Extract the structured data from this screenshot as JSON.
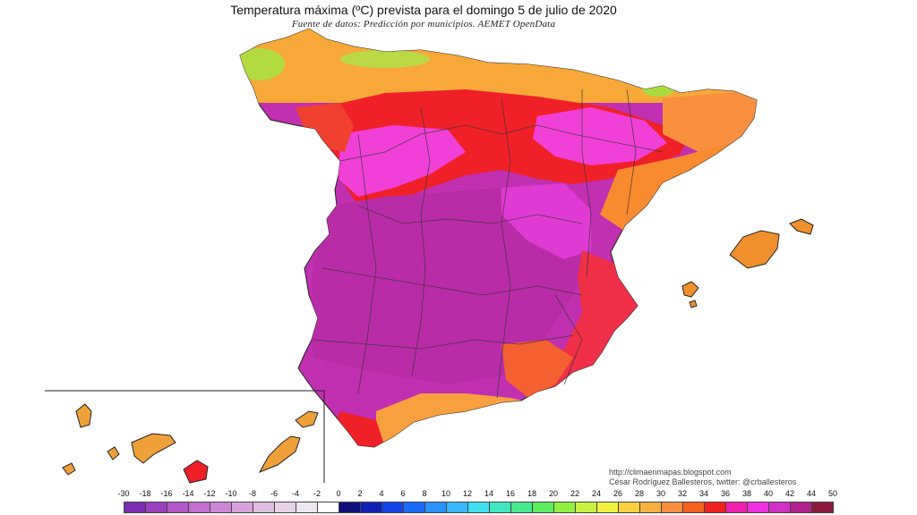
{
  "header": {
    "title": "Temperatura máxima (ºC) prevista para el domingo 5 de julio de 2020",
    "source": "Fuente de datos: Predicción por municipios. AEMET OpenData"
  },
  "credits": {
    "url": "http://climaenmapas.blogspot.com",
    "author": "César Rodríguez Ballesteros, twitter: @crballesteros"
  },
  "scale": {
    "labels": [
      "-30",
      "-18",
      "-16",
      "-14",
      "-12",
      "-10",
      "-8",
      "-6",
      "-4",
      "-2",
      "0",
      "2",
      "4",
      "6",
      "8",
      "10",
      "12",
      "14",
      "16",
      "18",
      "20",
      "22",
      "24",
      "26",
      "28",
      "30",
      "32",
      "34",
      "36",
      "38",
      "40",
      "42",
      "44",
      "50"
    ],
    "colors": [
      "#7a2fb0",
      "#9a3fc0",
      "#b457c8",
      "#c26fd0",
      "#cc88d6",
      "#d7a2dc",
      "#dfbde2",
      "#e6d3e8",
      "#eee6f0",
      "#ffffff",
      "#0d1078",
      "#1020b8",
      "#1444e6",
      "#1a6aff",
      "#2a92ff",
      "#3ab8ff",
      "#3ee0f0",
      "#40e8c0",
      "#46e890",
      "#5cec5c",
      "#90f040",
      "#c8f040",
      "#f0f040",
      "#f8d040",
      "#f8b040",
      "#f89040",
      "#f86020",
      "#f02020",
      "#f020b0",
      "#f030e0",
      "#d030c8",
      "#b0208c",
      "#8c1a3c"
    ]
  },
  "regions": {
    "north_coast": "#f8b440",
    "galicia": "#f0a030",
    "cantabria_green": "#a0e040",
    "ebro": "#f02028",
    "meseta_north": "#f040d8",
    "meseta_central": "#c030b0",
    "south": "#c030b0",
    "east_coast": "#f88a30",
    "mediterranean_band": "#f03040",
    "balearic": "#f0902c",
    "canarias": "#f0a038"
  }
}
